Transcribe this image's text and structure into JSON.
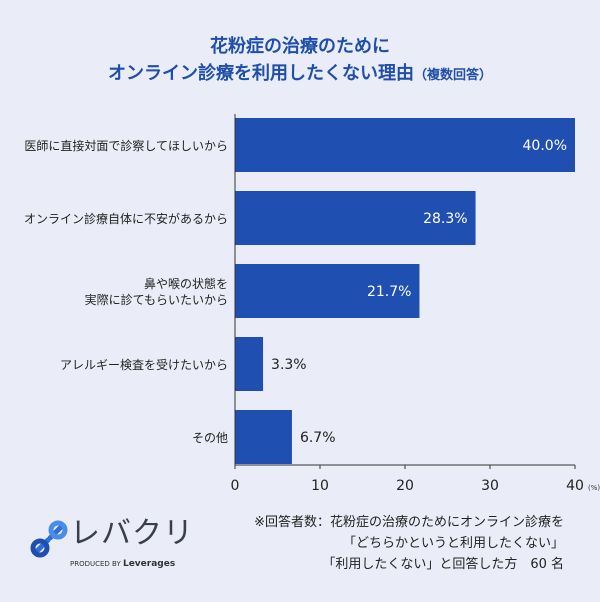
{
  "chart_data": {
    "type": "bar",
    "orientation": "horizontal",
    "title": [
      "花粉症の治療のために",
      "オンライン診療を利用したくない理由"
    ],
    "title_suffix": "（複数回答）",
    "categories": [
      "医師に直接対面で診察してほしいから",
      "オンライン診療自体に不安があるから",
      "鼻や喉の状態を\n実際に診てもらいたいから",
      "アレルギー検査を受けたいから",
      "その他"
    ],
    "values": [
      40.0,
      28.3,
      21.7,
      3.3,
      6.7
    ],
    "labels": [
      "40.0%",
      "28.3%",
      "21.7%",
      "3.3%",
      "6.7%"
    ],
    "xlim": [
      0,
      40
    ],
    "ticks": [
      "0",
      "10",
      "20",
      "30",
      "40"
    ],
    "unit": "(%)",
    "grid": false,
    "bar_color": "#1f4fb0"
  },
  "note": [
    "※回答者数：花粉症の治療のためにオンライン診療を",
    "「どちらかというと利用したくない」",
    "「利用したくない」と回答した方　60 名"
  ],
  "logo": {
    "name": "レバクリ",
    "sub": "PRODUCED BY",
    "brand": "Leverages"
  }
}
